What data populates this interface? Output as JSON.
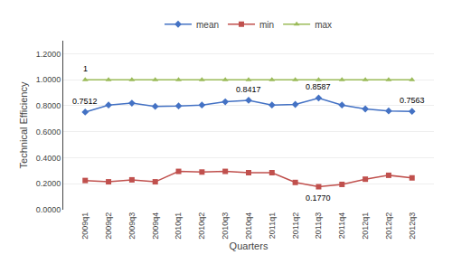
{
  "chart_data": {
    "type": "line",
    "categories": [
      "2009q1",
      "2009q2",
      "2009q3",
      "2009q4",
      "2010q1",
      "2010q2",
      "2010q3",
      "2010q4",
      "2011q1",
      "2011q2",
      "2011q3",
      "2011q4",
      "2012q1",
      "2012q2",
      "2012q3"
    ],
    "series": [
      {
        "name": "mean",
        "color": "#4472C4",
        "marker": "diamond",
        "values": [
          0.7512,
          0.805,
          0.82,
          0.795,
          0.798,
          0.805,
          0.83,
          0.8417,
          0.805,
          0.81,
          0.8587,
          0.805,
          0.775,
          0.76,
          0.7563
        ]
      },
      {
        "name": "min",
        "color": "#C0504D",
        "marker": "square",
        "values": [
          0.225,
          0.215,
          0.23,
          0.215,
          0.295,
          0.29,
          0.295,
          0.285,
          0.285,
          0.21,
          0.177,
          0.195,
          0.235,
          0.265,
          0.245
        ]
      },
      {
        "name": "max",
        "color": "#9BBB59",
        "marker": "triangle-up",
        "values": [
          1.0,
          1.0,
          1.0,
          1.0,
          1.0,
          1.0,
          1.0,
          1.0,
          1.0,
          1.0,
          1.0,
          1.0,
          1.0,
          1.0,
          1.0
        ]
      }
    ],
    "x_label": "Quarters",
    "y_label": "Technical Efficiency",
    "ylim": [
      0.0,
      1.2999
    ],
    "yticks": [
      {
        "value": 0.0,
        "label": "0.0000"
      },
      {
        "value": 0.2,
        "label": "0.2000"
      },
      {
        "value": 0.4,
        "label": "0.4000"
      },
      {
        "value": 0.6,
        "label": "0.6000"
      },
      {
        "value": 0.8,
        "label": "0.8000"
      },
      {
        "value": 1.0,
        "label": "1.0000"
      },
      {
        "value": 1.2,
        "label": "1.2000"
      }
    ],
    "annotations": [
      {
        "text": "0.7512",
        "x": "2009q1",
        "y": 0.7512
      },
      {
        "text": "0.8417",
        "x": "2010q4",
        "y": 0.8417
      },
      {
        "text": "0.8587",
        "x": "2011q3",
        "y": 0.8587
      },
      {
        "text": "0.7563",
        "x": "2012q3",
        "y": 0.7563
      },
      {
        "text": "0.1770",
        "x": "2011q3",
        "y": 0.177
      },
      {
        "text": "1",
        "x": "2009q1",
        "y": 1.0
      }
    ],
    "grid": true,
    "legend": "top"
  }
}
